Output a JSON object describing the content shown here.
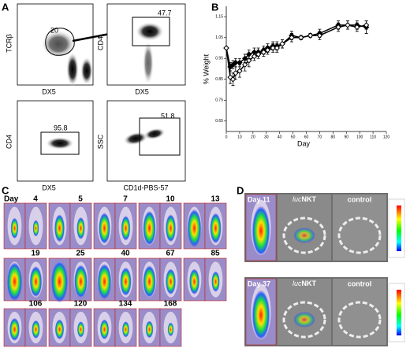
{
  "panels": {
    "a": {
      "letter": "A",
      "plots": [
        {
          "y_label": "TCRβ",
          "x_label": "DX5",
          "gate": "20"
        },
        {
          "y_label": "CD4",
          "x_label": "DX5",
          "gate": "47.7"
        },
        {
          "y_label": "CD4",
          "x_label": "DX5",
          "gate": "95.8"
        },
        {
          "y_label": "SSC",
          "x_label": "CD1d-PBS-57",
          "gate": "51.8"
        }
      ]
    },
    "b": {
      "letter": "B"
    },
    "c": {
      "letter": "C",
      "day_label": "Day",
      "days": [
        "4",
        "5",
        "7",
        "10",
        "13",
        "19",
        "25",
        "40",
        "67",
        "85",
        "106",
        "120",
        "134",
        "168"
      ]
    },
    "d": {
      "letter": "D",
      "rows": [
        {
          "day": "Day 11",
          "luc": "luc",
          "nkt": "NKT",
          "control": "control"
        },
        {
          "day": "Day 37",
          "luc": "luc",
          "nkt": "NKT",
          "control": "control"
        }
      ]
    }
  },
  "chart_data": {
    "type": "line",
    "x_label": "Day",
    "y_label": "% Weight",
    "xlim": [
      0,
      120
    ],
    "xticks": [
      0,
      10,
      20,
      30,
      40,
      50,
      60,
      70,
      80,
      90,
      100,
      110,
      120
    ],
    "ylim": [
      0.6,
      1.2
    ],
    "yticks": [
      0.65,
      0.75,
      0.85,
      0.95,
      1.05,
      1.15
    ],
    "x": [
      0,
      3,
      5,
      7,
      10,
      14,
      17,
      21,
      24,
      28,
      31,
      35,
      38,
      42,
      49,
      56,
      63,
      70,
      84,
      91,
      98,
      105
    ],
    "series": [
      {
        "color": "#000000",
        "marker": "filled",
        "values": [
          1.0,
          0.91,
          0.92,
          0.93,
          0.93,
          0.95,
          0.97,
          0.98,
          0.98,
          0.99,
          1.0,
          1.01,
          1.01,
          1.02,
          1.06,
          1.05,
          1.06,
          1.07,
          1.11,
          1.11,
          1.11,
          1.1
        ],
        "errors": [
          0.0,
          0.02,
          0.02,
          0.02,
          0.02,
          0.02,
          0.02,
          0.02,
          0.02,
          0.02,
          0.02,
          0.02,
          0.02,
          0.02,
          0.02,
          0.01,
          0.01,
          0.02,
          0.02,
          0.02,
          0.02,
          0.03
        ]
      },
      {
        "color": "#000000",
        "marker": "open",
        "values": [
          1.0,
          0.86,
          0.85,
          0.88,
          0.89,
          0.92,
          0.94,
          0.96,
          0.97,
          0.98,
          0.99,
          1.0,
          1.0,
          1.02,
          1.05,
          1.05,
          1.06,
          1.06,
          1.1,
          1.11,
          1.1,
          1.11
        ],
        "errors": [
          0.0,
          0.03,
          0.03,
          0.03,
          0.03,
          0.03,
          0.03,
          0.02,
          0.02,
          0.02,
          0.02,
          0.02,
          0.02,
          0.02,
          0.02,
          0.01,
          0.01,
          0.02,
          0.02,
          0.02,
          0.02,
          0.02
        ]
      }
    ]
  }
}
